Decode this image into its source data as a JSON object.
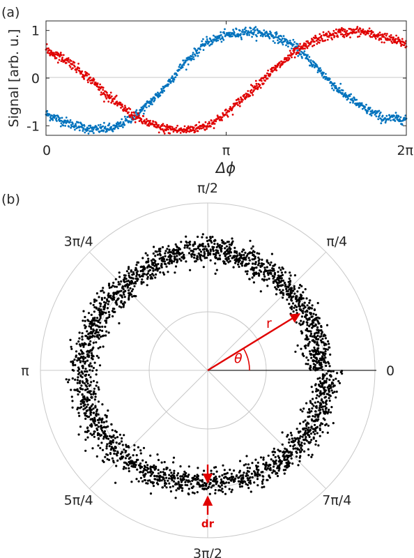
{
  "chart_data": [
    {
      "panel_label": "(a)",
      "type": "scatter",
      "xlabel": "Δϕ",
      "ylabel": "Signal [arb. u.]",
      "xlim": [
        0,
        6.2832
      ],
      "ylim": [
        -1.2,
        1.2
      ],
      "x_ticks": [
        {
          "value": 0,
          "label": "0"
        },
        {
          "value": 3.1416,
          "label": "π"
        },
        {
          "value": 6.2832,
          "label": "2π"
        }
      ],
      "y_ticks": [
        {
          "value": -1,
          "label": "-1"
        },
        {
          "value": 0,
          "label": "0"
        },
        {
          "value": 1,
          "label": "1"
        }
      ],
      "grid": "horizontal line at 0",
      "series": [
        {
          "color": "#0072BD",
          "x": [
            0,
            0.4,
            0.8,
            1.2,
            1.6,
            2.0,
            2.4,
            2.8,
            3.1416,
            3.5,
            3.9,
            4.3,
            4.7,
            5.1,
            5.5,
            5.9,
            6.2832
          ],
          "y": [
            -0.75,
            -0.95,
            -1.08,
            -1.05,
            -0.75,
            -0.3,
            0.3,
            0.75,
            0.9,
            0.98,
            0.92,
            0.7,
            0.25,
            -0.25,
            -0.6,
            -0.85,
            -0.85
          ]
        },
        {
          "color": "#E00000",
          "x": [
            0,
            0.4,
            0.8,
            1.2,
            1.6,
            2.0,
            2.4,
            2.8,
            3.1416,
            3.5,
            3.9,
            4.3,
            4.7,
            5.1,
            5.5,
            5.9,
            6.2832
          ],
          "y": [
            0.6,
            0.35,
            -0.05,
            -0.5,
            -0.85,
            -1.05,
            -1.1,
            -1.0,
            -0.75,
            -0.35,
            0.1,
            0.5,
            0.8,
            0.95,
            0.98,
            0.85,
            0.72
          ]
        }
      ]
    },
    {
      "panel_label": "(b)",
      "type": "scatter",
      "coordinate_system": "polar",
      "angle_labels": [
        "0",
        "π/4",
        "π/2",
        "3π/4",
        "π",
        "5π/4",
        "3π/2",
        "7π/4"
      ],
      "grid": "concentric circles and radial spokes every π/4",
      "marker_color": "#000000",
      "ring_mean_radius": [
        0.85,
        0.88,
        0.92,
        0.9,
        0.96,
        0.93,
        0.85,
        0.9,
        0.92
      ],
      "ring_mean_radius_angles": [
        0,
        0.785,
        1.571,
        2.356,
        3.1416,
        3.927,
        4.712,
        5.498,
        6.2832
      ],
      "ring_thickness_dr": 0.1,
      "annotations": [
        {
          "text": "r",
          "color": "#E00000",
          "kind": "arrow from origin to ring"
        },
        {
          "text": "θ",
          "color": "#E00000",
          "kind": "angle arc from 0"
        },
        {
          "text": "dr",
          "color": "#E00000",
          "kind": "pair of arrows marking ring width"
        }
      ]
    }
  ]
}
